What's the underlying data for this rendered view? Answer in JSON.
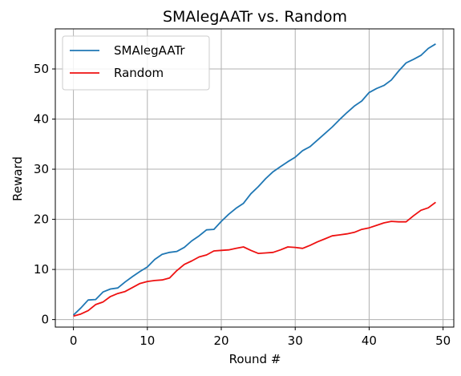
{
  "chart_data": {
    "type": "line",
    "title": "SMAlegAATr vs. Random",
    "xlabel": "Round #",
    "ylabel": "Reward",
    "xlim": [
      -2.45,
      51.45
    ],
    "ylim": [
      -1.5,
      58
    ],
    "xticks": [
      0,
      10,
      20,
      30,
      40,
      50
    ],
    "yticks": [
      0,
      10,
      20,
      30,
      40,
      50
    ],
    "grid": true,
    "legend_position": "top-left",
    "x": [
      0,
      1,
      2,
      3,
      4,
      5,
      6,
      7,
      8,
      9,
      10,
      11,
      12,
      13,
      14,
      15,
      16,
      17,
      18,
      19,
      20,
      21,
      22,
      23,
      24,
      25,
      26,
      27,
      28,
      29,
      30,
      31,
      32,
      33,
      34,
      35,
      36,
      37,
      38,
      39,
      40,
      41,
      42,
      43,
      44,
      45,
      46,
      47,
      48,
      49
    ],
    "series": [
      {
        "name": "SMAlegAATr",
        "color": "#1f77b4",
        "values": [
          0.9,
          2.3,
          3.9,
          4.0,
          5.5,
          6.1,
          6.3,
          7.5,
          8.6,
          9.6,
          10.5,
          12.0,
          13.0,
          13.4,
          13.6,
          14.4,
          15.7,
          16.7,
          17.9,
          18.0,
          19.6,
          21.0,
          22.2,
          23.2,
          25.1,
          26.5,
          28.1,
          29.5,
          30.5,
          31.5,
          32.4,
          33.7,
          34.5,
          35.8,
          37.1,
          38.4,
          39.9,
          41.3,
          42.6,
          43.6,
          45.3,
          46.1,
          46.7,
          47.8,
          49.6,
          51.2,
          51.9,
          52.7,
          54.1,
          55.0
        ]
      },
      {
        "name": "Random",
        "color": "#ee1111",
        "values": [
          0.7,
          1.1,
          1.8,
          3.0,
          3.5,
          4.6,
          5.2,
          5.6,
          6.4,
          7.2,
          7.6,
          7.8,
          7.9,
          8.3,
          9.8,
          11.0,
          11.7,
          12.5,
          12.9,
          13.7,
          13.8,
          13.9,
          14.2,
          14.5,
          13.8,
          13.2,
          13.3,
          13.4,
          13.9,
          14.5,
          14.4,
          14.2,
          14.8,
          15.5,
          16.1,
          16.7,
          16.9,
          17.1,
          17.4,
          18.0,
          18.3,
          18.8,
          19.3,
          19.6,
          19.5,
          19.5,
          20.7,
          21.8,
          22.3,
          23.4
        ]
      }
    ]
  }
}
